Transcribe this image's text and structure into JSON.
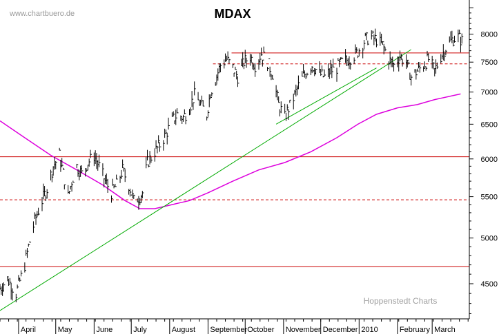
{
  "watermark": "www.chartbuero.de",
  "source_label": "Hoppenstedt Charts",
  "colors": {
    "price": "#000000",
    "horizontal_levels": "#cc0000",
    "trendlines": "#00aa00",
    "moving_average": "#dd00dd",
    "axis": "#000000"
  },
  "chart_data": {
    "type": "line",
    "title": "MDAX",
    "xlabel": "",
    "ylabel": "",
    "y_scale": "log",
    "ylim": [
      4150,
      8600
    ],
    "xlim": [
      "2009-03-17",
      "2010-03-31"
    ],
    "y_ticks": [
      4500,
      5000,
      5500,
      6000,
      6500,
      7000,
      7500,
      8000
    ],
    "y_tick_labels": [
      "4500",
      "5000",
      "5500",
      "6000",
      "6500",
      "7000",
      "7500",
      "8000"
    ],
    "x_ticks": [
      {
        "label": "April",
        "date": "2009-04-01"
      },
      {
        "label": "May",
        "date": "2009-05-01"
      },
      {
        "label": "June",
        "date": "2009-06-01"
      },
      {
        "label": "July",
        "date": "2009-07-01"
      },
      {
        "label": "August",
        "date": "2009-08-01"
      },
      {
        "label": "September",
        "date": "2009-09-01"
      },
      {
        "label": "October",
        "date": "2009-10-01"
      },
      {
        "label": "November",
        "date": "2009-11-01"
      },
      {
        "label": "December",
        "date": "2009-12-01"
      },
      {
        "label": "2010",
        "date": "2010-01-01"
      },
      {
        "label": "February",
        "date": "2010-02-01"
      },
      {
        "label": "March",
        "date": "2010-03-01"
      }
    ],
    "grid": false,
    "series": [
      {
        "kind": "price",
        "x": [
          "2009-03-17",
          "2009-03-23",
          "2009-03-30",
          "2009-04-06",
          "2009-04-09",
          "2009-04-14",
          "2009-04-20",
          "2009-04-24",
          "2009-04-29",
          "2009-05-04",
          "2009-05-07",
          "2009-05-11",
          "2009-05-14",
          "2009-05-18",
          "2009-05-22",
          "2009-05-27",
          "2009-06-01",
          "2009-06-05",
          "2009-06-10",
          "2009-06-15",
          "2009-06-19",
          "2009-06-24",
          "2009-06-29",
          "2009-07-03",
          "2009-07-08",
          "2009-07-10",
          "2009-07-14",
          "2009-07-20",
          "2009-07-24",
          "2009-07-29",
          "2009-08-03",
          "2009-08-07",
          "2009-08-12",
          "2009-08-17",
          "2009-08-21",
          "2009-08-26",
          "2009-08-31",
          "2009-09-03",
          "2009-09-07",
          "2009-09-11",
          "2009-09-16",
          "2009-09-21",
          "2009-09-25",
          "2009-09-30",
          "2009-10-05",
          "2009-10-09",
          "2009-10-14",
          "2009-10-19",
          "2009-10-23",
          "2009-10-28",
          "2009-11-02",
          "2009-11-04",
          "2009-11-09",
          "2009-11-13",
          "2009-11-18",
          "2009-11-24",
          "2009-11-30",
          "2009-12-04",
          "2009-12-09",
          "2009-12-14",
          "2009-12-18",
          "2009-12-23",
          "2009-12-30",
          "2010-01-06",
          "2010-01-11",
          "2010-01-15",
          "2010-01-20",
          "2010-01-25",
          "2010-01-29",
          "2010-02-03",
          "2010-02-08",
          "2010-02-12",
          "2010-02-17",
          "2010-02-22",
          "2010-02-26",
          "2010-03-03",
          "2010-03-08",
          "2010-03-12",
          "2010-03-17",
          "2010-03-22",
          "2010-03-26"
        ],
        "close": [
          4450,
          4550,
          4400,
          4700,
          4900,
          5200,
          5450,
          5600,
          5900,
          6050,
          5800,
          5500,
          5700,
          5900,
          5800,
          5950,
          6050,
          5900,
          5700,
          5550,
          5650,
          5850,
          5650,
          5450,
          5500,
          5550,
          5950,
          6100,
          6200,
          6350,
          6550,
          6650,
          6600,
          6750,
          6950,
          6800,
          6650,
          7000,
          7200,
          7450,
          7550,
          7400,
          7250,
          7500,
          7600,
          7450,
          7650,
          7500,
          7300,
          6800,
          6600,
          6700,
          6900,
          7100,
          7300,
          7450,
          7300,
          7250,
          7350,
          7400,
          7500,
          7550,
          7650,
          7900,
          7950,
          7900,
          7800,
          7550,
          7450,
          7600,
          7500,
          7250,
          7350,
          7450,
          7550,
          7350,
          7600,
          7750,
          7900,
          7950,
          7850
        ]
      },
      {
        "kind": "moving_average",
        "x": [
          "2009-03-17",
          "2009-04-06",
          "2009-04-27",
          "2009-05-18",
          "2009-06-08",
          "2009-06-26",
          "2009-07-08",
          "2009-07-20",
          "2009-08-03",
          "2009-08-17",
          "2009-09-01",
          "2009-09-21",
          "2009-10-12",
          "2009-11-02",
          "2009-11-23",
          "2009-12-14",
          "2009-12-31",
          "2010-01-15",
          "2010-02-01",
          "2010-02-17",
          "2010-03-03",
          "2010-03-24"
        ],
        "y": [
          6550,
          6300,
          6050,
          5850,
          5650,
          5450,
          5350,
          5350,
          5400,
          5450,
          5550,
          5700,
          5850,
          5950,
          6100,
          6300,
          6500,
          6650,
          6750,
          6800,
          6880,
          6970
        ]
      },
      {
        "kind": "trendline",
        "x": [
          "2009-03-17",
          "2010-02-12"
        ],
        "y": [
          4230,
          7720
        ]
      },
      {
        "kind": "trendline",
        "x": [
          "2009-10-26",
          "2010-01-15"
        ],
        "y": [
          6500,
          7400
        ]
      }
    ],
    "horizontal_lines": [
      {
        "y": 7660,
        "style": "solid",
        "from": "2009-09-20",
        "to": "2010-03-31"
      },
      {
        "y": 7470,
        "style": "dashed",
        "from": "2009-09-05",
        "to": "2010-03-31"
      },
      {
        "y": 6030,
        "style": "solid",
        "from": "2009-03-17",
        "to": "2010-03-31"
      },
      {
        "y": 5460,
        "style": "dashed",
        "from": "2009-03-17",
        "to": "2010-03-31"
      },
      {
        "y": 4680,
        "style": "solid",
        "from": "2009-03-17",
        "to": "2010-03-31"
      }
    ]
  }
}
